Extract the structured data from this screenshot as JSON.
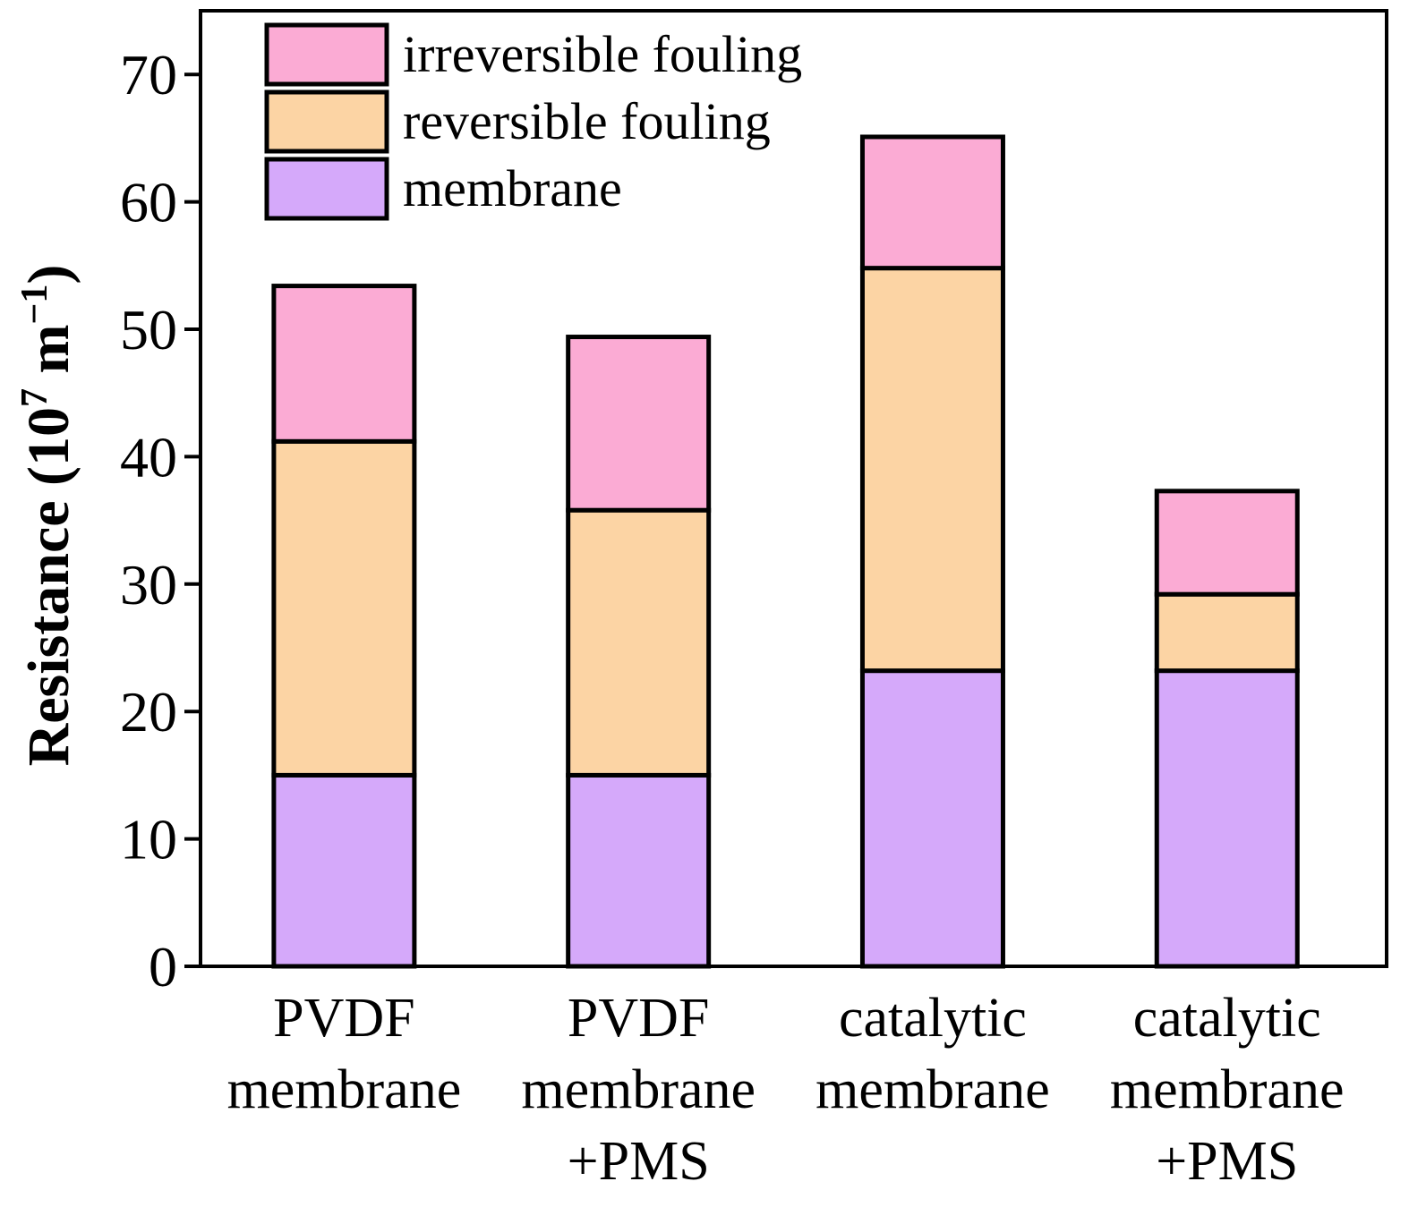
{
  "chart_data": {
    "type": "bar",
    "stacked": true,
    "title": "",
    "xlabel": "",
    "ylabel": {
      "main": "Resistance (10",
      "exp1": "7",
      "unit": " m",
      "exp2": "−1",
      "close": ")"
    },
    "ylim": [
      0,
      75
    ],
    "yticks": [
      0,
      10,
      20,
      30,
      40,
      50,
      60,
      70
    ],
    "categories": [
      [
        "PVDF",
        "membrane"
      ],
      [
        "PVDF",
        "membrane",
        "+PMS"
      ],
      [
        "catalytic",
        "membrane"
      ],
      [
        "catalytic",
        "membrane",
        "+PMS"
      ]
    ],
    "series": [
      {
        "name": "membrane",
        "color": "#d5a9fa",
        "values": [
          15.0,
          15.0,
          23.2,
          23.2
        ]
      },
      {
        "name": "reversible fouling",
        "color": "#fcd4a4",
        "values": [
          26.2,
          20.8,
          31.6,
          6.0
        ]
      },
      {
        "name": "irreversible fouling",
        "color": "#fbabd4",
        "values": [
          12.2,
          13.6,
          10.3,
          8.1
        ]
      }
    ],
    "legend": {
      "position": "top-left",
      "order": [
        "irreversible fouling",
        "reversible fouling",
        "membrane"
      ]
    },
    "grid": false
  }
}
